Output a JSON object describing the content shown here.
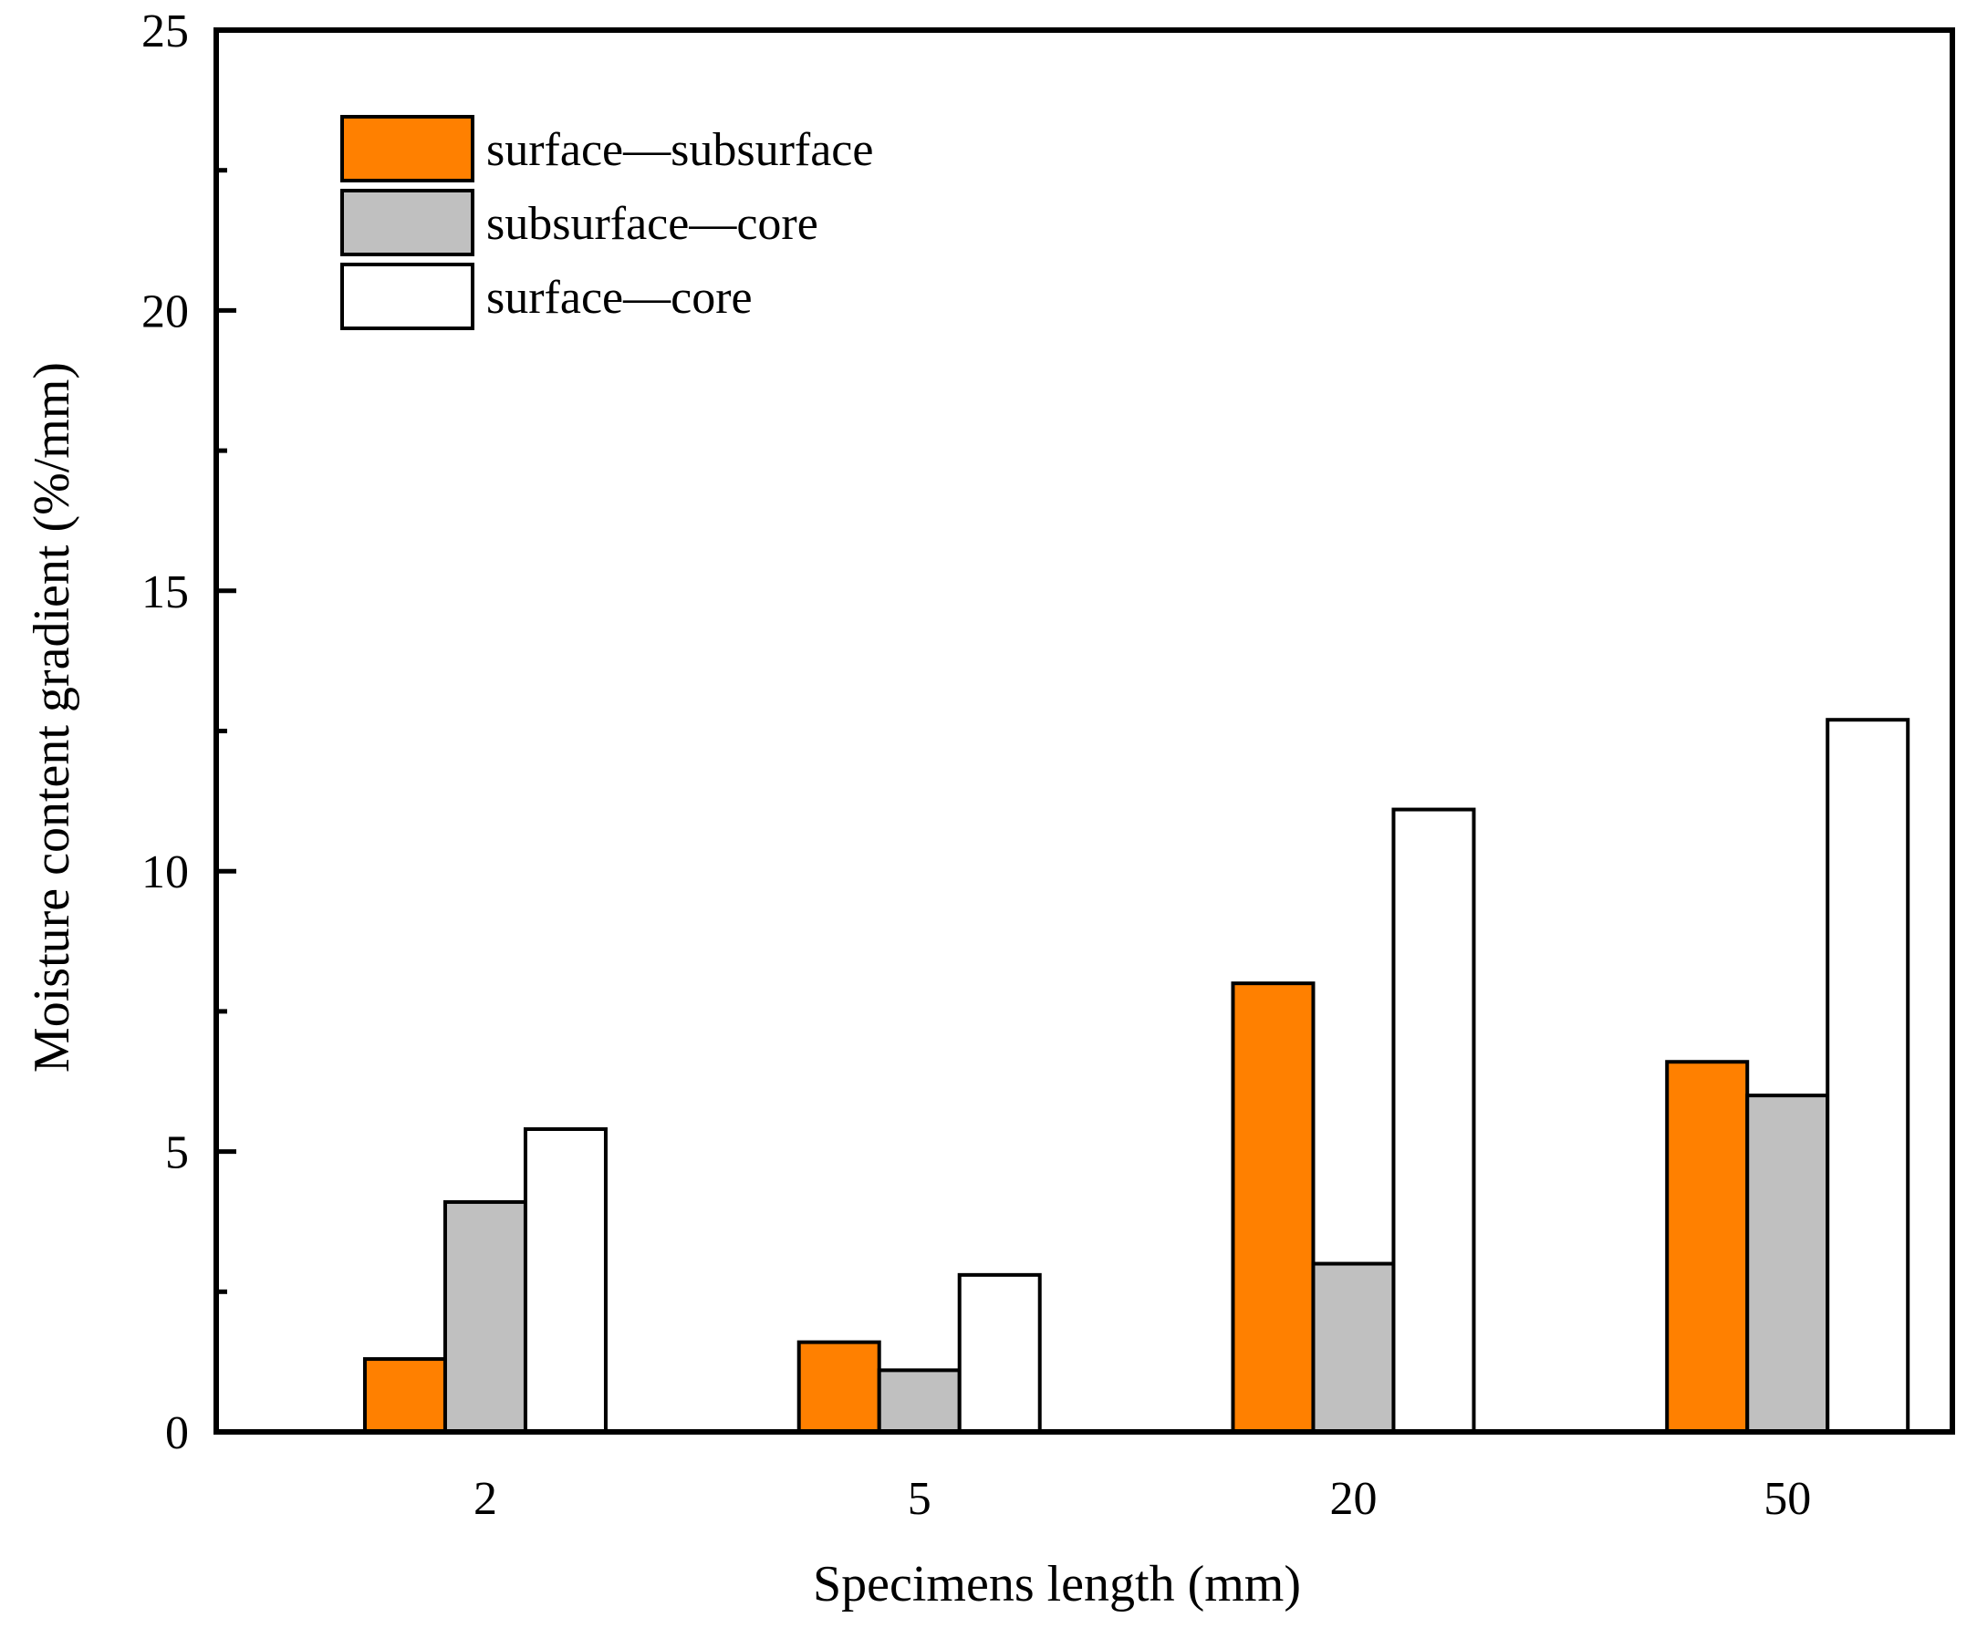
{
  "chart_data": {
    "type": "bar",
    "title": "",
    "xlabel": "Specimens  length  (mm)",
    "ylabel": "Moisture  content  gradient  (%/mm)",
    "categories": [
      "2",
      "5",
      "20",
      "50"
    ],
    "ylim": [
      0,
      25
    ],
    "yticks": [
      "0",
      "5",
      "10",
      "15",
      "20",
      "25"
    ],
    "minor_tick_step": 2.5,
    "grid": false,
    "legend_position": "top-left",
    "series": [
      {
        "name": "surface—subsurface",
        "color": "#ff8000",
        "values": [
          1.3,
          1.6,
          8.0,
          6.6
        ]
      },
      {
        "name": "subsurface—core",
        "color": "#c0c0c0",
        "values": [
          4.1,
          1.1,
          3.0,
          6.0
        ]
      },
      {
        "name": "surface—core",
        "color": "#ffffff",
        "values": [
          5.4,
          2.8,
          11.1,
          12.7
        ]
      }
    ]
  }
}
